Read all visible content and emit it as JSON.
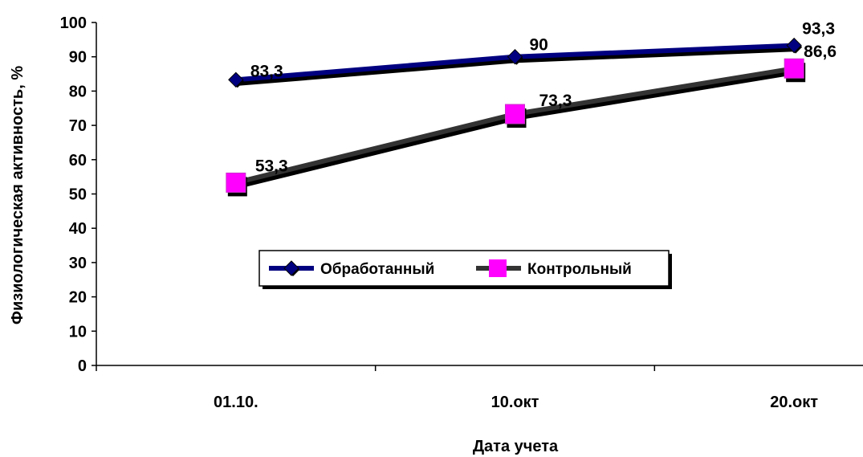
{
  "chart_data": {
    "type": "line",
    "categories": [
      "01.10.",
      "10.окт",
      "20.окт"
    ],
    "xlabel": "Дата учета",
    "ylabel": "Физиологическая активность, %",
    "ylim": [
      0,
      100
    ],
    "ytick_step": 10,
    "grid": false,
    "legend_position": "center-right",
    "series": [
      {
        "name": "Обработанный",
        "values": [
          83.3,
          90,
          93.3
        ],
        "labels": [
          "83,3",
          "90",
          "93,3"
        ],
        "color": "#000080",
        "marker": "diamond"
      },
      {
        "name": "Контрольный",
        "values": [
          53.3,
          73.3,
          86.6
        ],
        "labels": [
          "53,3",
          "73,3",
          "86,6"
        ],
        "color": "#333333",
        "marker": "square",
        "marker_color": "#ff00ff"
      }
    ]
  }
}
